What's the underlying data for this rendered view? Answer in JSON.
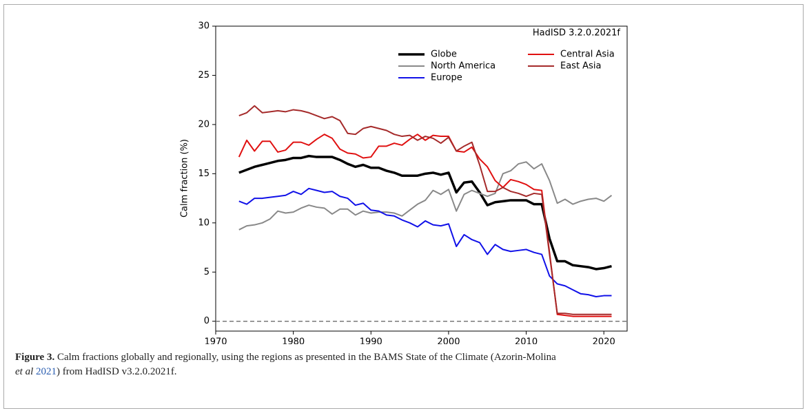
{
  "chart_data": {
    "type": "line",
    "y_label": "Calm fraction (%)",
    "annotation": "HadISD 3.2.0.2021f",
    "x": [
      1973,
      1974,
      1975,
      1976,
      1977,
      1978,
      1979,
      1980,
      1981,
      1982,
      1983,
      1984,
      1985,
      1986,
      1987,
      1988,
      1989,
      1990,
      1991,
      1992,
      1993,
      1994,
      1995,
      1996,
      1997,
      1998,
      1999,
      2000,
      2001,
      2002,
      2003,
      2004,
      2005,
      2006,
      2007,
      2008,
      2009,
      2010,
      2011,
      2012,
      2013,
      2014,
      2015,
      2016,
      2017,
      2018,
      2019,
      2020,
      2021
    ],
    "series": [
      {
        "name": "Globe",
        "color": "#000000",
        "width": 3.5,
        "values": [
          15.1,
          15.4,
          15.7,
          15.9,
          16.1,
          16.3,
          16.4,
          16.6,
          16.6,
          16.8,
          16.7,
          16.7,
          16.7,
          16.4,
          16.0,
          15.7,
          15.9,
          15.6,
          15.6,
          15.3,
          15.1,
          14.8,
          14.8,
          14.8,
          15.0,
          15.1,
          14.9,
          15.1,
          13.1,
          14.1,
          14.2,
          13.1,
          11.8,
          12.1,
          12.2,
          12.3,
          12.3,
          12.3,
          11.9,
          11.9,
          8.4,
          6.1,
          6.1,
          5.7,
          5.6,
          5.5,
          5.3,
          5.4,
          5.6
        ]
      },
      {
        "name": "North America",
        "color": "#888888",
        "width": 2,
        "values": [
          9.3,
          9.7,
          9.8,
          10.0,
          10.4,
          11.2,
          11.0,
          11.1,
          11.5,
          11.8,
          11.6,
          11.5,
          10.9,
          11.4,
          11.4,
          10.8,
          11.2,
          11.0,
          11.1,
          11.1,
          11.0,
          10.7,
          11.3,
          11.9,
          12.3,
          13.3,
          12.9,
          13.4,
          11.2,
          12.9,
          13.3,
          13.0,
          12.7,
          13.0,
          15.0,
          15.3,
          16.0,
          16.2,
          15.5,
          16.0,
          14.3,
          12.0,
          12.4,
          11.9,
          12.2,
          12.4,
          12.5,
          12.2,
          12.8
        ]
      },
      {
        "name": "Europe",
        "color": "#1010e8",
        "width": 2,
        "values": [
          12.2,
          11.9,
          12.5,
          12.5,
          12.6,
          12.7,
          12.8,
          13.2,
          12.9,
          13.5,
          13.3,
          13.1,
          13.2,
          12.7,
          12.5,
          11.8,
          12.0,
          11.3,
          11.2,
          10.8,
          10.7,
          10.3,
          10.0,
          9.6,
          10.2,
          9.8,
          9.7,
          9.9,
          7.6,
          8.8,
          8.3,
          8.0,
          6.8,
          7.8,
          7.3,
          7.1,
          7.2,
          7.3,
          7.0,
          6.8,
          4.6,
          3.8,
          3.6,
          3.2,
          2.8,
          2.7,
          2.5,
          2.6,
          2.6
        ]
      },
      {
        "name": "Central Asia",
        "color": "#e01010",
        "width": 2,
        "values": [
          16.7,
          18.4,
          17.3,
          18.3,
          18.3,
          17.2,
          17.4,
          18.2,
          18.2,
          17.9,
          18.5,
          19.0,
          18.6,
          17.5,
          17.1,
          17.0,
          16.6,
          16.7,
          17.8,
          17.8,
          18.1,
          17.9,
          18.5,
          19.0,
          18.4,
          18.9,
          18.8,
          18.8,
          17.3,
          17.2,
          17.7,
          16.5,
          15.7,
          14.3,
          13.6,
          14.4,
          14.2,
          13.9,
          13.4,
          13.3,
          7.0,
          0.7,
          0.6,
          0.5,
          0.5,
          0.5,
          0.5,
          0.5,
          0.5
        ]
      },
      {
        "name": "East Asia",
        "color": "#a52a2a",
        "width": 2,
        "values": [
          20.9,
          21.2,
          21.9,
          21.2,
          21.3,
          21.4,
          21.3,
          21.5,
          21.4,
          21.2,
          20.9,
          20.6,
          20.8,
          20.4,
          19.1,
          19.0,
          19.6,
          19.8,
          19.6,
          19.4,
          19.0,
          18.8,
          18.9,
          18.4,
          18.8,
          18.6,
          18.1,
          18.7,
          17.3,
          17.8,
          18.2,
          15.9,
          13.2,
          13.2,
          13.6,
          13.2,
          13.0,
          12.7,
          13.0,
          12.9,
          6.8,
          0.8,
          0.8,
          0.7,
          0.7,
          0.7,
          0.7,
          0.7,
          0.7
        ]
      }
    ],
    "xlim": [
      1970,
      2023
    ],
    "xticks": [
      1970,
      1980,
      1990,
      2000,
      2010,
      2020
    ],
    "ylim": [
      -1,
      30
    ],
    "yticks": [
      0,
      5,
      10,
      15,
      20,
      25,
      30
    ],
    "hline": 0,
    "legend": "upper right",
    "legend_columns": 2
  },
  "caption": {
    "label": "Figure 3.",
    "text_before": "Calm fractions globally and regionally, using the regions as presented in the BAMS State of the Climate (Azorin-Molina",
    "et_al": "et al",
    "year": "2021",
    "text_after": ") from HadISD v3.2.0.2021f."
  }
}
